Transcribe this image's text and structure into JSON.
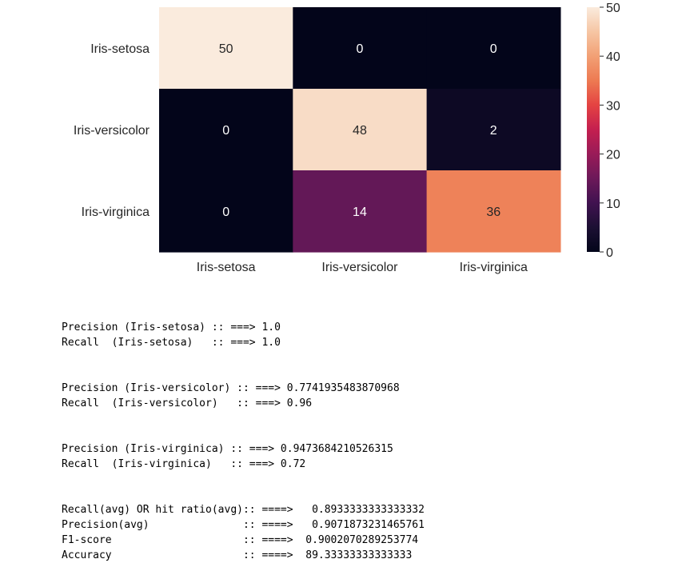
{
  "chart_data": {
    "type": "heatmap",
    "row_labels": [
      "Iris-setosa",
      "Iris-versicolor",
      "Iris-virginica"
    ],
    "col_labels": [
      "Iris-setosa",
      "Iris-versicolor",
      "Iris-virginica"
    ],
    "values": [
      [
        50,
        0,
        0
      ],
      [
        0,
        48,
        2
      ],
      [
        0,
        14,
        36
      ]
    ],
    "colorbar": {
      "min": 0,
      "max": 50,
      "ticks": [
        0,
        10,
        20,
        30,
        40,
        50
      ],
      "colormap": "rocket"
    },
    "title": "",
    "xlabel": "",
    "ylabel": ""
  },
  "output_lines": [
    "Precision (Iris-setosa) :: ===> 1.0",
    "Recall  (Iris-setosa)   :: ===> 1.0",
    "",
    "",
    "Precision (Iris-versicolor) :: ===> 0.7741935483870968",
    "Recall  (Iris-versicolor)   :: ===> 0.96",
    "",
    "",
    "Precision (Iris-virginica) :: ===> 0.9473684210526315",
    "Recall  (Iris-virginica)   :: ===> 0.72",
    "",
    "",
    "Recall(avg) OR hit ratio(avg):: ====>   0.8933333333333332",
    "Precision(avg)               :: ====>   0.9071873231465761",
    "F1-score                     :: ====>  0.9002070289253774",
    "Accuracy                     :: ====>  89.33333333333333"
  ]
}
